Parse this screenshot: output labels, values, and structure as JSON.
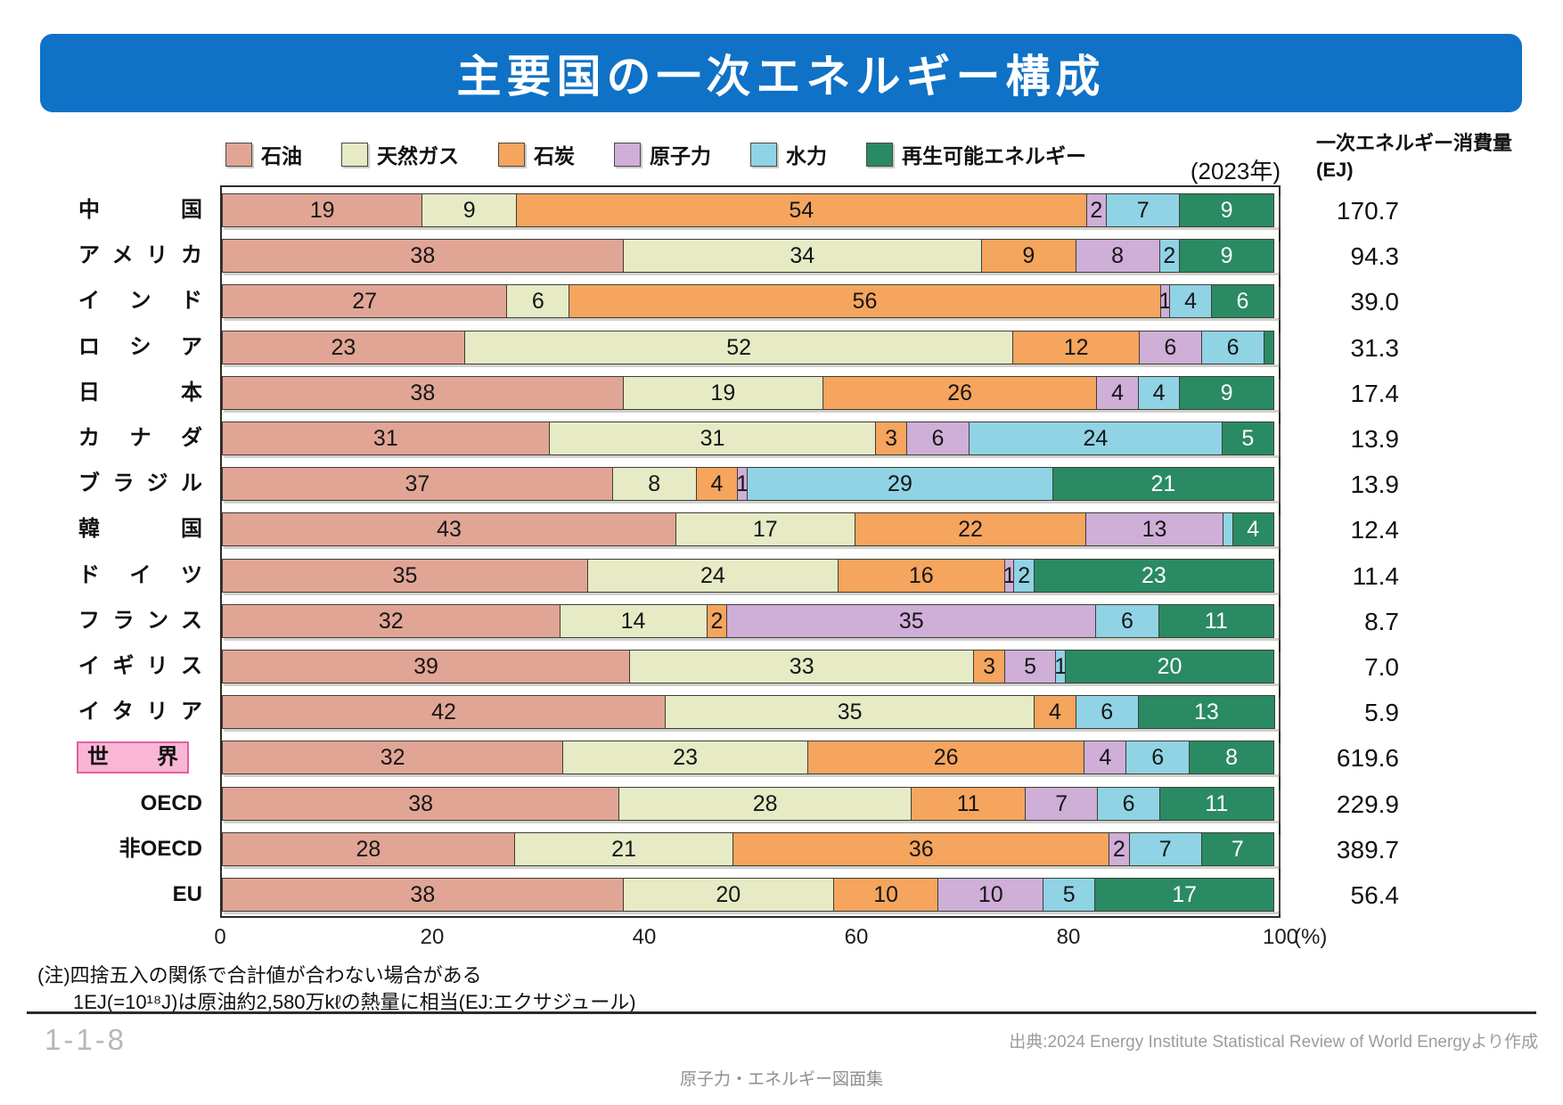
{
  "title": "主要国の一次エネルギー構成",
  "year_label": "(2023年)",
  "consumption_header_line1": "一次エネルギー消費量",
  "consumption_header_line2": "(EJ)",
  "notes": {
    "line1": "(注)四捨五入の関係で合計値が合わない場合がある",
    "line2": "1EJ(=10¹⁸J)は原油約2,580万kℓの熱量に相当(EJ:エクサジュール)"
  },
  "footer": {
    "page_number": "1-1-8",
    "source": "出典:2024 Energy Institute Statistical Review of World Energyより作成",
    "doc_title": "原子力・エネルギー図面集"
  },
  "colors": {
    "banner_blue": "#0f72c6",
    "oil": "#e1a595",
    "gas": "#e6eac5",
    "coal": "#f5a55e",
    "nuclear": "#cfaed8",
    "hydro": "#8fd3e4",
    "renewable": "#2a8a63",
    "segment_border": "#3e3e36",
    "world_highlight_bg": "#f9b6d5",
    "world_highlight_border": "#e2609e"
  },
  "chart_data": {
    "type": "bar",
    "subtype": "horizontal-stacked-100percent",
    "title": "主要国の一次エネルギー構成",
    "unit": "%",
    "xlabel": "(%)",
    "x_axis": {
      "ticks": [
        0,
        20,
        40,
        60,
        80,
        100
      ],
      "suffix": "(%)"
    },
    "legend_position": "top",
    "series_names": [
      "石油",
      "天然ガス",
      "石炭",
      "原子力",
      "水力",
      "再生可能エネルギー"
    ],
    "series_keys": [
      "oil",
      "gas",
      "coal",
      "nuclear",
      "hydro",
      "renewable"
    ],
    "series_colors": [
      "#e1a595",
      "#e6eac5",
      "#f5a55e",
      "#cfaed8",
      "#8fd3e4",
      "#2a8a63"
    ],
    "rows": [
      {
        "key": "china",
        "label": "中国",
        "align": "justify",
        "highlight": false,
        "ej": "170.7",
        "values": [
          19,
          9,
          54,
          2,
          7,
          9
        ],
        "value_labels": [
          "19",
          "9",
          "54",
          "2",
          "7",
          "9"
        ]
      },
      {
        "key": "usa",
        "label": "アメリカ",
        "align": "justify",
        "highlight": false,
        "ej": "94.3",
        "values": [
          38,
          34,
          9,
          8,
          2,
          9
        ],
        "value_labels": [
          "38",
          "34",
          "9",
          "8",
          "2",
          "9"
        ]
      },
      {
        "key": "india",
        "label": "インド",
        "align": "justify",
        "highlight": false,
        "ej": "39.0",
        "values": [
          27,
          6,
          56,
          1,
          4,
          6
        ],
        "value_labels": [
          "27",
          "6",
          "56",
          "1",
          "4",
          "6"
        ]
      },
      {
        "key": "russia",
        "label": "ロシア",
        "align": "justify",
        "highlight": false,
        "ej": "31.3",
        "values": [
          23,
          52,
          12,
          6,
          6,
          1
        ],
        "value_labels": [
          "23",
          "52",
          "12",
          "6",
          "6",
          ""
        ]
      },
      {
        "key": "japan",
        "label": "日本",
        "align": "justify",
        "highlight": false,
        "ej": "17.4",
        "values": [
          38,
          19,
          26,
          4,
          4,
          9
        ],
        "value_labels": [
          "38",
          "19",
          "26",
          "4",
          "4",
          "9"
        ]
      },
      {
        "key": "canada",
        "label": "カナダ",
        "align": "justify",
        "highlight": false,
        "ej": "13.9",
        "values": [
          31,
          31,
          3,
          6,
          24,
          5
        ],
        "value_labels": [
          "31",
          "31",
          "3",
          "6",
          "24",
          "5"
        ]
      },
      {
        "key": "brazil",
        "label": "ブラジル",
        "align": "justify",
        "highlight": false,
        "ej": "13.9",
        "values": [
          37,
          8,
          4,
          1,
          29,
          21
        ],
        "value_labels": [
          "37",
          "8",
          "4",
          "1",
          "29",
          "21"
        ]
      },
      {
        "key": "south-korea",
        "label": "韓国",
        "align": "justify",
        "highlight": false,
        "ej": "12.4",
        "values": [
          43,
          17,
          22,
          13,
          1,
          4
        ],
        "value_labels": [
          "43",
          "17",
          "22",
          "13",
          "",
          "4"
        ]
      },
      {
        "key": "germany",
        "label": "ドイツ",
        "align": "justify",
        "highlight": false,
        "ej": "11.4",
        "values": [
          35,
          24,
          16,
          1,
          2,
          23
        ],
        "value_labels": [
          "35",
          "24",
          "16",
          "1",
          "2",
          "23"
        ]
      },
      {
        "key": "france",
        "label": "フランス",
        "align": "justify",
        "highlight": false,
        "ej": "8.7",
        "values": [
          32,
          14,
          2,
          35,
          6,
          11
        ],
        "value_labels": [
          "32",
          "14",
          "2",
          "35",
          "6",
          "11"
        ]
      },
      {
        "key": "uk",
        "label": "イギリス",
        "align": "justify",
        "highlight": false,
        "ej": "7.0",
        "values": [
          39,
          33,
          3,
          5,
          1,
          20
        ],
        "value_labels": [
          "39",
          "33",
          "3",
          "5",
          "1",
          "20"
        ]
      },
      {
        "key": "italy",
        "label": "イタリア",
        "align": "justify",
        "highlight": false,
        "ej": "5.9",
        "values": [
          42,
          35,
          4,
          0,
          6,
          13
        ],
        "value_labels": [
          "42",
          "35",
          "4",
          "",
          "6",
          "13"
        ]
      },
      {
        "key": "world",
        "label": "世界",
        "align": "justify",
        "highlight": true,
        "ej": "619.6",
        "values": [
          32,
          23,
          26,
          4,
          6,
          8
        ],
        "value_labels": [
          "32",
          "23",
          "26",
          "4",
          "6",
          "8"
        ]
      },
      {
        "key": "oecd",
        "label": "OECD",
        "align": "right",
        "highlight": false,
        "ej": "229.9",
        "values": [
          38,
          28,
          11,
          7,
          6,
          11
        ],
        "value_labels": [
          "38",
          "28",
          "11",
          "7",
          "6",
          "11"
        ]
      },
      {
        "key": "non-oecd",
        "label": "非OECD",
        "align": "right",
        "highlight": false,
        "ej": "389.7",
        "values": [
          28,
          21,
          36,
          2,
          7,
          7
        ],
        "value_labels": [
          "28",
          "21",
          "36",
          "2",
          "7",
          "7"
        ]
      },
      {
        "key": "eu",
        "label": "EU",
        "align": "right",
        "highlight": false,
        "ej": "56.4",
        "values": [
          38,
          20,
          10,
          10,
          5,
          17
        ],
        "value_labels": [
          "38",
          "20",
          "10",
          "10",
          "5",
          "17"
        ]
      }
    ]
  }
}
